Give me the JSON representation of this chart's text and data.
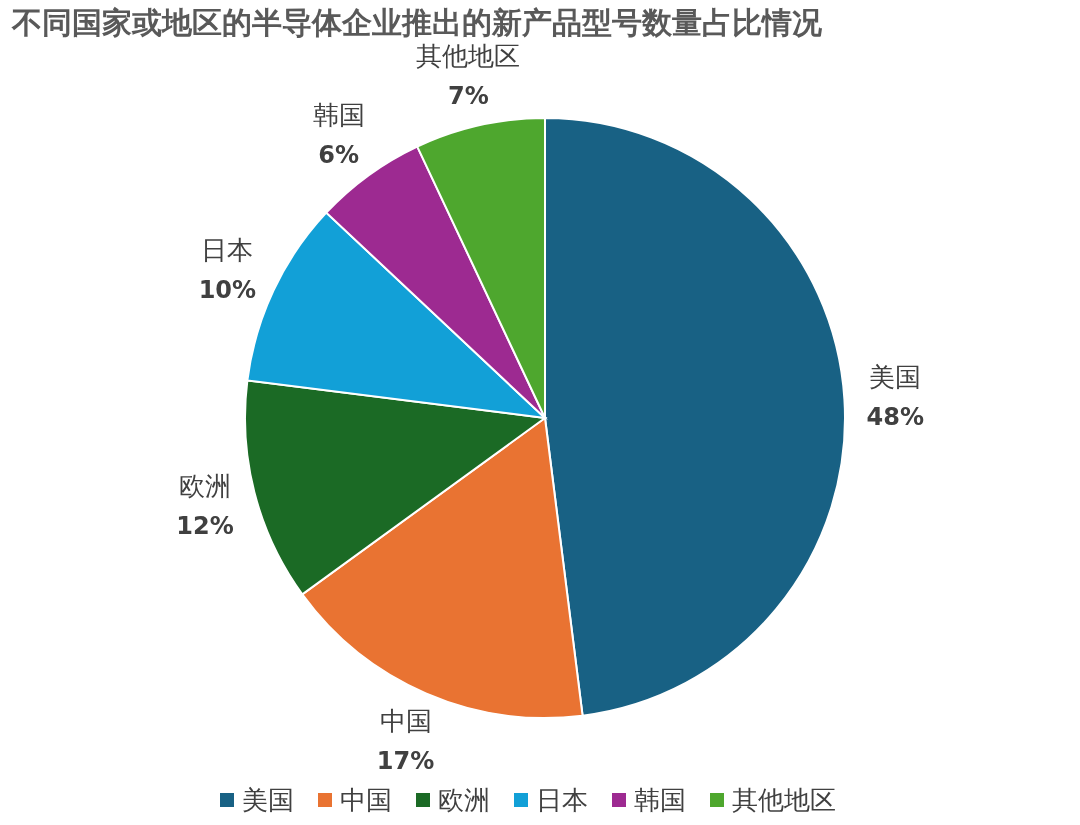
{
  "chart_data": {
    "type": "pie",
    "title": "不同国家或地区的半导体企业推出的新产品型号数量占比情况",
    "categories": [
      "美国",
      "中国",
      "欧洲",
      "日本",
      "韩国",
      "其他地区"
    ],
    "values": [
      48,
      17,
      12,
      10,
      6,
      7
    ],
    "colors": [
      "#186184",
      "#e97332",
      "#1b6a25",
      "#12a0d7",
      "#9d2a91",
      "#4ea72e"
    ],
    "value_labels": [
      "48%",
      "17%",
      "12%",
      "10%",
      "6%",
      "7%"
    ],
    "legend": "bottom"
  }
}
